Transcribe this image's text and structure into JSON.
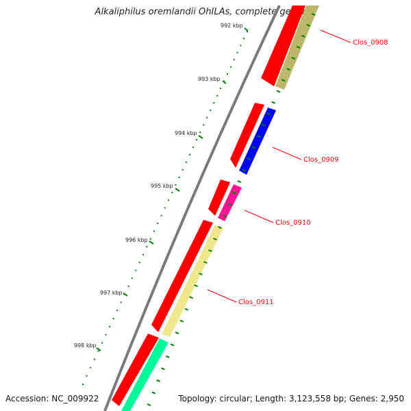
{
  "title": "Alkaliphilus oremlandii OhILAs, complete genome",
  "accession": "Accession: NC_009922",
  "summary": "Topology: circular; Length: 3,123,558 bp; Genes: 2,950",
  "ticks": [
    "992 kbp",
    "993 kbp",
    "994 kbp",
    "995 kbp",
    "996 kbp",
    "997 kbp",
    "998 kbp"
  ],
  "genes": [
    "Clos_0908",
    "Clos_0909",
    "Clos_0910",
    "Clos_0911"
  ],
  "colors": {
    "backbone": "#7a7a7a",
    "strand_red": "#ff0000",
    "gene_olive": "#bdb76b",
    "gene_blue": "#0000ff",
    "gene_pink": "#ff1493",
    "gene_khaki": "#f0e68c",
    "gene_green": "#00fa9a",
    "tick_green": "#008000",
    "label_red": "#ff0000"
  }
}
